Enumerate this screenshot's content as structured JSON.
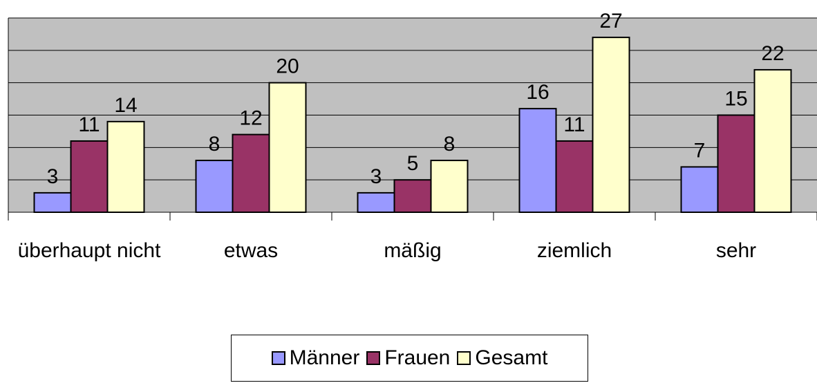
{
  "chart_data": {
    "type": "bar",
    "categories": [
      "überhaupt nicht",
      "etwas",
      "mäßig",
      "ziemlich",
      "sehr"
    ],
    "series": [
      {
        "name": "Männer",
        "color": "#9999ff",
        "values": [
          3,
          8,
          3,
          16,
          7
        ]
      },
      {
        "name": "Frauen",
        "color": "#993366",
        "values": [
          11,
          12,
          5,
          11,
          15
        ]
      },
      {
        "name": "Gesamt",
        "color": "#ffffcc",
        "values": [
          14,
          20,
          8,
          27,
          22
        ]
      }
    ],
    "ylim": [
      0,
      30
    ],
    "yticks": [
      0,
      5,
      10,
      15,
      20,
      25,
      30
    ],
    "grid": true,
    "legend": "bottom"
  }
}
